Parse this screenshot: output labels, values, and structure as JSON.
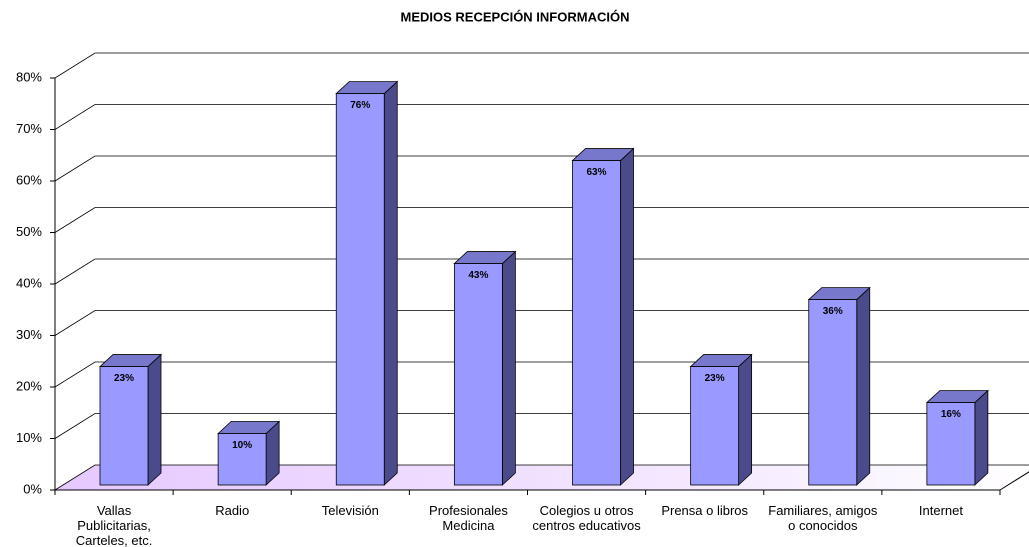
{
  "chart_data": {
    "type": "bar3d",
    "title": "MEDIOS RECEPCIÓN INFORMACIÓN",
    "categories": [
      "Vallas Publicitarias, Carteles, etc.",
      "Radio",
      "Televisión",
      "Profesionales Medicina",
      "Colegios u otros centros educativos",
      "Prensa o libros",
      "Familiares, amigos o conocidos",
      "Internet"
    ],
    "values": [
      23,
      10,
      76,
      43,
      63,
      23,
      36,
      16
    ],
    "value_labels": [
      "23%",
      "10%",
      "76%",
      "43%",
      "63%",
      "23%",
      "36%",
      "16%"
    ],
    "color": "#9999ff",
    "ylim": [
      0,
      80
    ],
    "yticks": [
      {
        "value": 0,
        "label": "0%"
      },
      {
        "value": 10,
        "label": "10%"
      },
      {
        "value": 20,
        "label": "20%"
      },
      {
        "value": 30,
        "label": "30%"
      },
      {
        "value": 40,
        "label": "40%"
      },
      {
        "value": 50,
        "label": "50%"
      },
      {
        "value": 60,
        "label": "60%"
      },
      {
        "value": 70,
        "label": "70%"
      },
      {
        "value": 80,
        "label": "80%"
      }
    ],
    "grid": true
  }
}
